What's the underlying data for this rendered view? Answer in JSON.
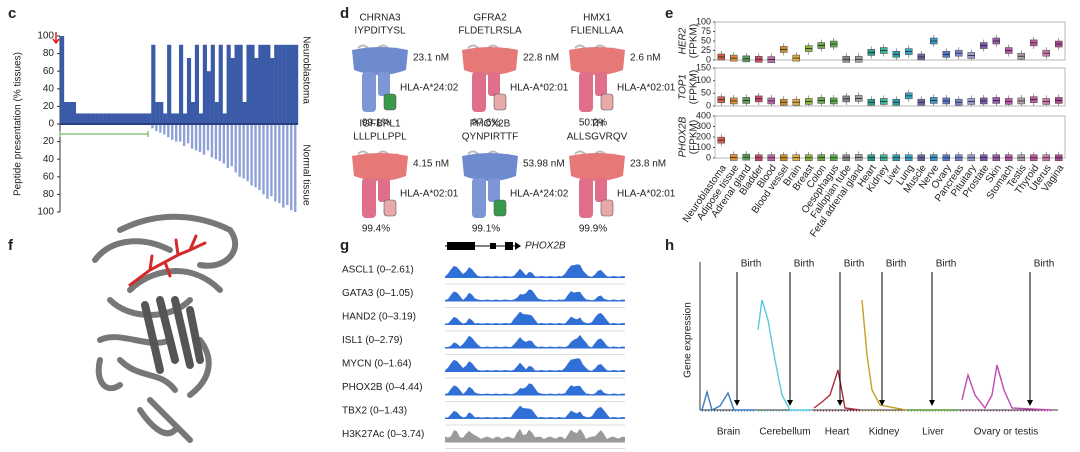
{
  "panel_c": {
    "label": "c",
    "y_label": "Peptide presentation (% tissues)",
    "top_label": "Neuroblastoma",
    "bottom_label": "Normal tissue",
    "ylim": [
      0,
      100
    ],
    "yticks_up": [
      0,
      20,
      40,
      60,
      80,
      100
    ],
    "yticks_down": [
      20,
      40,
      60,
      80,
      100
    ],
    "neuroblastoma": [
      100,
      25,
      25,
      25,
      12,
      12,
      12,
      12,
      12,
      12,
      12,
      12,
      12,
      12,
      12,
      12,
      12,
      12,
      12,
      12,
      12,
      12,
      12,
      90,
      25,
      25,
      12,
      90,
      12,
      12,
      90,
      12,
      75,
      25,
      90,
      12,
      90,
      60,
      90,
      25,
      90,
      12,
      90,
      75,
      90,
      90,
      25,
      90,
      90,
      75,
      90,
      90,
      90,
      75,
      90,
      90,
      90,
      90,
      90,
      90
    ],
    "normal_tissue": [
      0,
      0,
      0,
      0,
      0,
      0,
      0,
      0,
      0,
      0,
      0,
      0,
      0,
      0,
      0,
      0,
      0,
      0,
      0,
      0,
      0,
      0,
      0,
      5,
      8,
      10,
      12,
      15,
      18,
      20,
      20,
      25,
      22,
      28,
      30,
      32,
      35,
      30,
      38,
      40,
      42,
      45,
      50,
      48,
      55,
      60,
      62,
      65,
      70,
      72,
      75,
      80,
      85,
      82,
      88,
      90,
      95,
      92,
      98,
      100
    ]
  },
  "panel_d": {
    "label": "d",
    "complexes": [
      {
        "gene": "CHRNA3",
        "peptide": "IYPDITYSL",
        "affinity": "23.1 nM",
        "allele": "HLA-A*24:02",
        "coverage": "99.1%"
      },
      {
        "gene": "GFRA2",
        "peptide": "FLDETLRSLA",
        "affinity": "22.8 nM",
        "allele": "HLA-A*02:01",
        "coverage": "97.6%"
      },
      {
        "gene": "HMX1",
        "peptide": "FLIENLLAA",
        "affinity": "2.6 nM",
        "allele": "HLA-A*02:01",
        "coverage": "50.2%"
      },
      {
        "gene": "IGFBPL1",
        "peptide": "LLLPLLPPL",
        "affinity": "4.15 nM",
        "allele": "HLA-A*02:01",
        "coverage": "99.4%"
      },
      {
        "gene": "PHOX2B",
        "peptide": "QYNPIRTTF",
        "affinity": "53.98 nM",
        "allele": "HLA-A*24:02",
        "coverage": "99.1%"
      },
      {
        "gene": "TH",
        "peptide": "ALLSGVRQV",
        "affinity": "23.8 nM",
        "allele": "HLA-A*02:01",
        "coverage": "99.9%"
      }
    ]
  },
  "panel_e": {
    "label": "e",
    "unit": "(FPKM)",
    "tissues": [
      "Neuroblastoma",
      "Adipose tissue",
      "Adrenal gland",
      "Bladder",
      "Blood",
      "Blood vessel",
      "Brain",
      "Breast",
      "Colon",
      "Oesophagus",
      "Fallopian tube",
      "Fetal adrenal gland",
      "Heart",
      "Kidney",
      "Liver",
      "Lung",
      "Muscle",
      "Nerve",
      "Ovary",
      "Pancreas",
      "Pituitary",
      "Prostate",
      "Skin",
      "Stomach",
      "Testis",
      "Thyroid",
      "Uterus",
      "Vagina"
    ],
    "colors": [
      "#d9604a",
      "#e0903a",
      "#5aa05a",
      "#d04a6a",
      "#c06aa8",
      "#d0902a",
      "#e0b040",
      "#8fb840",
      "#6aa84a",
      "#5ab04a",
      "#8a8a8a",
      "#a0a0a0",
      "#2aa08a",
      "#3ab8a0",
      "#2aa0b0",
      "#3aa8c8",
      "#6a6aa8",
      "#3a9ad0",
      "#5a7ad0",
      "#7a8ad0",
      "#9a9ad0",
      "#7a5ab0",
      "#a05ab0",
      "#c05ab0",
      "#b0a0b0",
      "#c05aa0",
      "#d07ab0",
      "#b04a90"
    ],
    "genes": [
      {
        "name": "HER2",
        "ylim": [
          0,
          100
        ],
        "yticks": [
          0,
          25,
          50,
          75,
          100
        ],
        "medians": [
          8,
          5,
          3,
          2,
          1,
          28,
          5,
          30,
          38,
          42,
          2,
          2,
          20,
          25,
          15,
          22,
          8,
          50,
          15,
          18,
          12,
          38,
          50,
          25,
          10,
          45,
          18,
          42
        ]
      },
      {
        "name": "TOP1",
        "ylim": [
          0,
          150
        ],
        "yticks": [
          0,
          50,
          100,
          150
        ],
        "medians": [
          25,
          20,
          22,
          28,
          20,
          15,
          15,
          18,
          22,
          20,
          28,
          30,
          15,
          18,
          15,
          40,
          15,
          22,
          20,
          15,
          18,
          20,
          22,
          18,
          20,
          25,
          18,
          22
        ]
      },
      {
        "name": "PHOX2B",
        "ylim": [
          0,
          400
        ],
        "yticks": [
          0,
          100,
          200,
          300,
          400
        ],
        "medians": [
          170,
          5,
          8,
          2,
          2,
          2,
          3,
          2,
          3,
          2,
          2,
          5,
          2,
          2,
          2,
          2,
          2,
          3,
          2,
          2,
          2,
          2,
          2,
          2,
          2,
          2,
          2,
          2
        ]
      }
    ]
  },
  "panel_f": {
    "label": "f"
  },
  "panel_g": {
    "label": "g",
    "gene": "PHOX2B",
    "tracks": [
      "ASCL1 (0–2.61)",
      "GATA3 (0–1.05)",
      "HAND2 (0–3.19)",
      "ISL1 (0–2.79)",
      "MYCN (0–1.64)",
      "PHOX2B (0–4.44)",
      "TBX2 (0–1.43)",
      "H3K27Ac (0–3.74)"
    ]
  },
  "panel_h": {
    "label": "h",
    "y_label": "Gene expression",
    "event": "Birth",
    "tissues": [
      "Brain",
      "Cerebellum",
      "Heart",
      "Kidney",
      "Liver",
      "Ovary or testis"
    ]
  }
}
